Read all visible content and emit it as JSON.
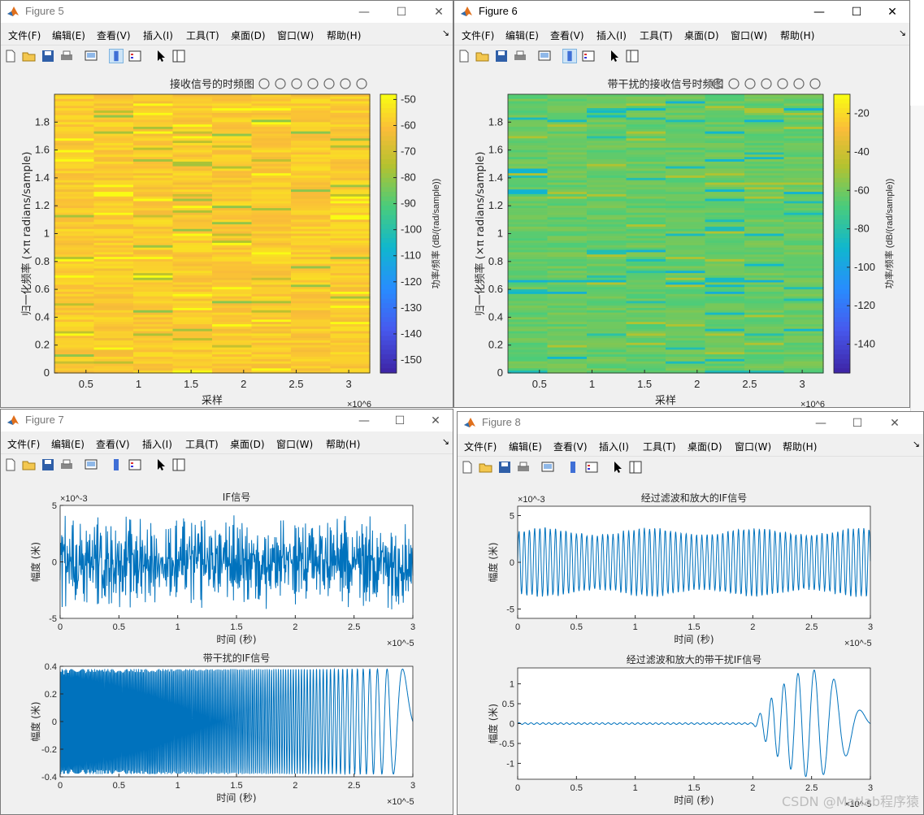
{
  "menu_labels": [
    "文件(F)",
    "编辑(E)",
    "查看(V)",
    "插入(I)",
    "工具(T)",
    "桌面(D)",
    "窗口(W)",
    "帮助(H)"
  ],
  "controls": {
    "minimize": "—",
    "maximize": "☐",
    "close": "✕",
    "menu_more": "↘"
  },
  "fig5": {
    "title": "Figure 5",
    "plot_title": "接收信号的时频图",
    "chart_data": {
      "type": "heatmap",
      "title": "接收信号的时频图",
      "xlabel": "采样",
      "xscale": "×10^6",
      "xlim": [
        0.2,
        3.2
      ],
      "xticks": [
        "0.5",
        "1",
        "1.5",
        "2",
        "2.5",
        "3"
      ],
      "ylabel": "归一化频率 (×π radians/sample)",
      "ylim": [
        0,
        2
      ],
      "yticks": [
        "0",
        "0.2",
        "0.4",
        "0.6",
        "0.8",
        "1",
        "1.2",
        "1.4",
        "1.6",
        "1.8"
      ],
      "colorbar_label": "功率/频率 (dB/(rad/sample))",
      "clim": [
        -155,
        -48
      ],
      "colorbar_ticks": [
        "-50",
        "-60",
        "-70",
        "-80",
        "-90",
        "-100",
        "-110",
        "-120",
        "-130",
        "-140",
        "-150"
      ],
      "dominant_level_db": -58
    }
  },
  "fig6": {
    "title": "Figure 6",
    "plot_title": "带干扰的接收信号时频图",
    "chart_data": {
      "type": "heatmap",
      "title": "带干扰的接收信号时频图",
      "xlabel": "采样",
      "xscale": "×10^6",
      "xlim": [
        0.2,
        3.2
      ],
      "xticks": [
        "0.5",
        "1",
        "1.5",
        "2",
        "2.5",
        "3"
      ],
      "ylabel": "归一化频率 (×π radians/sample)",
      "ylim": [
        0,
        2
      ],
      "yticks": [
        "0",
        "0.2",
        "0.4",
        "0.6",
        "0.8",
        "1",
        "1.2",
        "1.4",
        "1.6",
        "1.8"
      ],
      "colorbar_label": "功率/频率 (dB/(rad/sample))",
      "clim": [
        -155,
        -10
      ],
      "colorbar_ticks": [
        "-20",
        "-40",
        "-60",
        "-80",
        "-100",
        "-120",
        "-140"
      ],
      "dominant_level_db": -62
    }
  },
  "fig7": {
    "title": "Figure 7",
    "chart_data": [
      {
        "type": "line",
        "title": "IF信号",
        "xlabel": "时间 (秒)",
        "xscale": "×10^-5",
        "xlim": [
          0,
          3
        ],
        "xticks": [
          "0",
          "0.5",
          "1",
          "1.5",
          "2",
          "2.5",
          "3"
        ],
        "ylabel": "幅度 (米)",
        "yscale": "×10^-3",
        "ylim": [
          -5,
          5
        ],
        "yticks": [
          "-5",
          "0",
          "5"
        ],
        "description_peak": 3.5
      },
      {
        "type": "line",
        "title": "带干扰的IF信号",
        "xlabel": "时间 (秒)",
        "xscale": "×10^-5",
        "xlim": [
          0,
          3
        ],
        "xticks": [
          "0",
          "0.5",
          "1",
          "1.5",
          "2",
          "2.5",
          "3"
        ],
        "ylabel": "幅度 (米)",
        "ylim": [
          -0.4,
          0.4
        ],
        "yticks": [
          "-0.4",
          "-0.2",
          "0",
          "0.2",
          "0.4"
        ],
        "amplitude": 0.38
      }
    ]
  },
  "fig8": {
    "title": "Figure 8",
    "chart_data": [
      {
        "type": "line",
        "title": "经过滤波和放大的IF信号",
        "xlabel": "时间 (秒)",
        "xscale": "×10^-5",
        "xlim": [
          0,
          3
        ],
        "xticks": [
          "0",
          "0.5",
          "1",
          "1.5",
          "2",
          "2.5",
          "3"
        ],
        "ylabel": "幅度 (米)",
        "yscale": "×10^-3",
        "ylim": [
          -6,
          6
        ],
        "yticks": [
          "-5",
          "0",
          "5"
        ],
        "amplitude": 3.6
      },
      {
        "type": "line",
        "title": "经过滤波和放大的带干扰IF信号",
        "xlabel": "时间 (秒)",
        "xscale": "×10^-5",
        "xlim": [
          0,
          3
        ],
        "xticks": [
          "0",
          "0.5",
          "1",
          "1.5",
          "2",
          "2.5",
          "3"
        ],
        "ylabel": "幅度 (米)",
        "ylim": [
          -1.4,
          1.4
        ],
        "yticks": [
          "-1",
          "-0.5",
          "0",
          "0.5",
          "1"
        ],
        "burst_start": 2.0,
        "burst_peak": 1.35
      }
    ]
  },
  "watermark": "CSDN @Matlab程序猿"
}
